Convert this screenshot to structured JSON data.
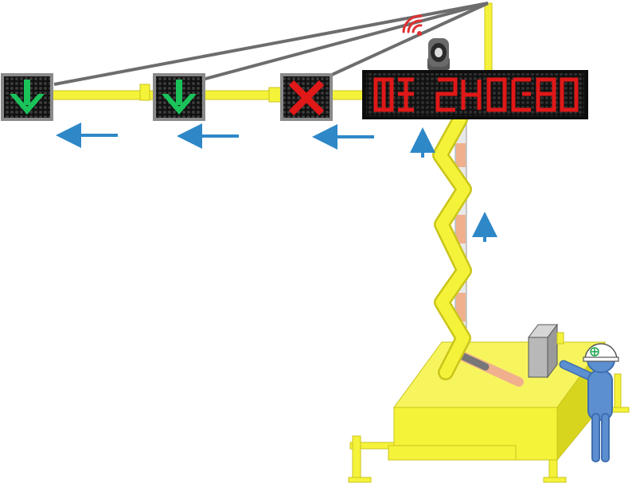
{
  "scene": {
    "colors": {
      "structure_yellow": "#f5f23a",
      "structure_edge": "#c9c51a",
      "cable_grey": "#6d6d6d",
      "arrow_blue": "#2e88c8",
      "led_green": "#19c35a",
      "led_red": "#e01818",
      "led_off": "#3a3a3a",
      "panel_frame": "#8a8a8a",
      "worker_blue": "#5b8fd0",
      "cylinder_orange": "#f0b08e"
    },
    "signals": [
      {
        "id": "signal-1",
        "symbol": "down-arrow",
        "color": "green"
      },
      {
        "id": "signal-2",
        "symbol": "down-arrow",
        "color": "green"
      },
      {
        "id": "signal-3",
        "symbol": "x-mark",
        "color": "red"
      }
    ],
    "message_board": {
      "color": "red",
      "text": ""
    },
    "arrows": [
      {
        "id": "arrow-left-1",
        "direction": "left"
      },
      {
        "id": "arrow-left-2",
        "direction": "left"
      },
      {
        "id": "arrow-left-3",
        "direction": "left"
      },
      {
        "id": "arrow-up-1",
        "direction": "up"
      },
      {
        "id": "arrow-up-2",
        "direction": "up"
      }
    ],
    "icons": [
      "wireless-signal-icon",
      "camera-icon",
      "hard-hat-icon",
      "control-box-icon"
    ]
  }
}
